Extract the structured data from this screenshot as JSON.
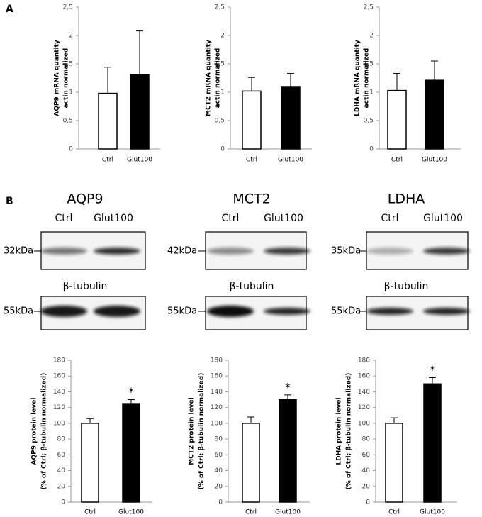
{
  "panel_labels": [
    "A",
    "B"
  ],
  "blots": [
    {
      "title": "AQP9",
      "lanes": [
        "Ctrl",
        "Glut100"
      ],
      "marker": "32kDa",
      "loading_control": "β-tubulin",
      "loading_marker": "55kDa"
    },
    {
      "title": "MCT2",
      "lanes": [
        "Ctrl",
        "Glut100"
      ],
      "marker": "42kDa",
      "loading_control": "β-tubulin",
      "loading_marker": "55kDa"
    },
    {
      "title": "LDHA",
      "lanes": [
        "Ctrl",
        "Glut100"
      ],
      "marker": "35kDa",
      "loading_control": "β-tubulin",
      "loading_marker": "55kDa"
    }
  ],
  "chart_data": [
    {
      "type": "bar",
      "ylabel": [
        "AQP9 mRNA quantity",
        "actin normalized"
      ],
      "categories": [
        "Ctrl",
        "Glut100"
      ],
      "values": [
        0.98,
        1.31
      ],
      "errors": [
        0.46,
        0.77
      ],
      "colors": [
        "#ffffff",
        "#000000"
      ],
      "ylim": [
        0,
        2.5
      ],
      "yticks": [
        0,
        {
          "value": 0.5,
          "label": "0,5"
        },
        1,
        {
          "value": 1.5,
          "label": "1,5"
        },
        2,
        {
          "value": 2.5,
          "label": "2,5"
        }
      ]
    },
    {
      "type": "bar",
      "ylabel": [
        "MCT2 mRNA quantity",
        "actin normalized"
      ],
      "categories": [
        "Ctrl",
        "Glut100"
      ],
      "values": [
        1.02,
        1.1
      ],
      "errors": [
        0.24,
        0.23
      ],
      "colors": [
        "#ffffff",
        "#000000"
      ],
      "ylim": [
        0,
        2.5
      ],
      "yticks": [
        0,
        {
          "value": 0.5,
          "label": "0,5"
        },
        1,
        {
          "value": 1.5,
          "label": "1,5"
        },
        2,
        {
          "value": 2.5,
          "label": "2,5"
        }
      ]
    },
    {
      "type": "bar",
      "ylabel": [
        "LDHA mRNA quantity",
        "actin normalized"
      ],
      "categories": [
        "Ctrl",
        "Glut100"
      ],
      "values": [
        1.03,
        1.21
      ],
      "errors": [
        0.3,
        0.34
      ],
      "colors": [
        "#ffffff",
        "#000000"
      ],
      "ylim": [
        0,
        2.5
      ],
      "yticks": [
        0,
        {
          "value": 0.5,
          "label": "0,5"
        },
        1,
        {
          "value": 1.5,
          "label": "1,5"
        },
        2,
        {
          "value": 2.5,
          "label": "2,5"
        }
      ]
    },
    {
      "type": "bar",
      "ylabel": [
        "AQP9 protein level",
        "(% of Ctrl; β-tubulin normalized)"
      ],
      "categories": [
        "Ctrl",
        "Glut100"
      ],
      "values": [
        100,
        125
      ],
      "errors": [
        6,
        5
      ],
      "value_annotations": [
        null,
        "*"
      ],
      "colors": [
        "#ffffff",
        "#000000"
      ],
      "ylim": [
        0,
        180
      ],
      "yticks": [
        0,
        20,
        40,
        60,
        80,
        100,
        120,
        140,
        160,
        180
      ]
    },
    {
      "type": "bar",
      "ylabel": [
        "MCT2 protein level",
        "(% of Ctrl; β-tubulin normalized)"
      ],
      "categories": [
        "Ctrl",
        "Glut100"
      ],
      "values": [
        100,
        130
      ],
      "errors": [
        8,
        6
      ],
      "value_annotations": [
        null,
        "*"
      ],
      "colors": [
        "#ffffff",
        "#000000"
      ],
      "ylim": [
        0,
        180
      ],
      "yticks": [
        0,
        20,
        40,
        60,
        80,
        100,
        120,
        140,
        160,
        180
      ]
    },
    {
      "type": "bar",
      "ylabel": [
        "LDHA protein level",
        "(% of Ctrl; β-tubulin normalized)"
      ],
      "categories": [
        "Ctrl",
        "Glut100"
      ],
      "values": [
        100,
        150
      ],
      "errors": [
        7,
        8
      ],
      "value_annotations": [
        null,
        "*"
      ],
      "colors": [
        "#ffffff",
        "#000000"
      ],
      "ylim": [
        0,
        180
      ],
      "yticks": [
        0,
        20,
        40,
        60,
        80,
        100,
        120,
        140,
        160,
        180
      ]
    }
  ]
}
